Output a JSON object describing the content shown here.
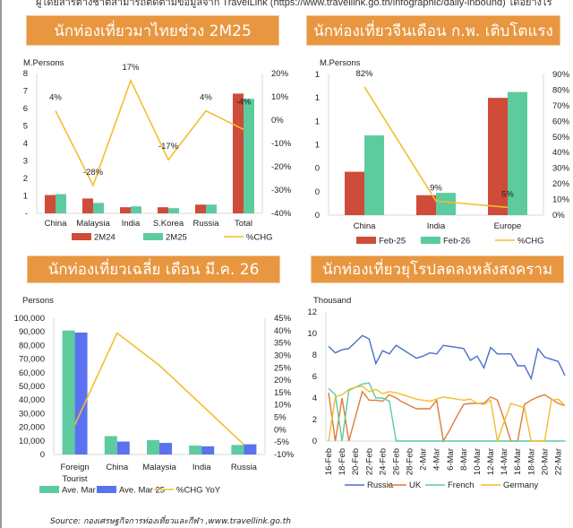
{
  "header_note": "ผู้โดยสารต่างชาติสามารถติดตามข้อมูลจาก TravelLink (https://www.travellink.go.th/infographic/daily-inbound) ได้อย่างไร",
  "titles": [
    "นักท่องเที่ยวมาไทยช่วง 2M25",
    "นักท่องเที่ยวจีนเดือน ก.พ. เติบโตแรง",
    "นักท่องเที่ยวเฉลี่ย เดือน มี.ค. 26",
    "นักท่องเที่ยวยุโรปลดลงหลังสงคราม"
  ],
  "source": "Source: กองเศรษฐกิจการท่องเที่ยวและกีฬา ,www.travellink.go.th",
  "colors": {
    "title_bar": "#E8963F",
    "red": "#CF4B3A",
    "green": "#5DCB9E",
    "blue": "#5B72F0",
    "yellow": "#F2BE2C",
    "russia": "#4A6FC9",
    "uk": "#E07B39",
    "french": "#5DCB9E",
    "germany": "#F2BE2C"
  },
  "chart_data": [
    {
      "type": "bar+line",
      "ylabel": "M.Persons",
      "categories": [
        "China",
        "Malaysia",
        "India",
        "S.Korea",
        "Russia",
        "Total"
      ],
      "ylim": [
        0,
        8
      ],
      "yticks": [
        "-",
        "1",
        "2",
        "3",
        "4",
        "5",
        "6",
        "7",
        "8"
      ],
      "y2lim": [
        -40,
        20
      ],
      "y2ticks": [
        "-40%",
        "-30%",
        "-20%",
        "-10%",
        "0%",
        "10%",
        "20%"
      ],
      "series": [
        {
          "name": "2M24",
          "type": "bar",
          "values": [
            1.05,
            0.85,
            0.35,
            0.35,
            0.5,
            6.85
          ]
        },
        {
          "name": "2M25",
          "type": "bar",
          "values": [
            1.1,
            0.6,
            0.4,
            0.3,
            0.5,
            6.55
          ]
        },
        {
          "name": "%CHG",
          "type": "line",
          "axis": "right",
          "values": [
            4,
            -28,
            17,
            -17,
            4,
            -4
          ],
          "labels": [
            "4%",
            "-28%",
            "17%",
            "-17%",
            "4%",
            "-4%"
          ]
        }
      ],
      "legend": "bottom"
    },
    {
      "type": "bar+line",
      "ylabel": "M.Persons",
      "categories": [
        "China",
        "India",
        "Europe"
      ],
      "ylim": [
        0,
        1.2
      ],
      "yticks": [
        "0",
        "0",
        "0",
        "1",
        "1",
        "1",
        "1"
      ],
      "y2lim": [
        0,
        90
      ],
      "y2ticks": [
        "0%",
        "10%",
        "20%",
        "30%",
        "40%",
        "50%",
        "60%",
        "70%",
        "80%",
        "90%"
      ],
      "series": [
        {
          "name": "Feb-25",
          "type": "bar",
          "values": [
            0.37,
            0.17,
            1.0
          ]
        },
        {
          "name": "Feb-26",
          "type": "bar",
          "values": [
            0.68,
            0.19,
            1.05
          ]
        },
        {
          "name": "%CHG",
          "type": "line",
          "axis": "right",
          "values": [
            82,
            9,
            5
          ],
          "labels": [
            "82%",
            "9%",
            "5%"
          ]
        }
      ],
      "legend": "bottom"
    },
    {
      "type": "bar+line",
      "ylabel": "Persons",
      "categories": [
        "Foreign Tourist",
        "China",
        "Malaysia",
        "India",
        "Russia"
      ],
      "ylim": [
        0,
        100000
      ],
      "yticks": [
        "0",
        "10,000",
        "20,000",
        "30,000",
        "40,000",
        "50,000",
        "60,000",
        "70,000",
        "80,000",
        "90,000",
        "100,000"
      ],
      "y2lim": [
        -10,
        45
      ],
      "y2ticks": [
        "-10%",
        "-5%",
        "0%",
        "5%",
        "10%",
        "15%",
        "20%",
        "25%",
        "30%",
        "35%",
        "40%",
        "45%"
      ],
      "series": [
        {
          "name": "Ave. Mar 26",
          "type": "bar",
          "values": [
            91000,
            13500,
            10500,
            6500,
            7000
          ]
        },
        {
          "name": "Ave. Mar 25",
          "type": "bar",
          "values": [
            89500,
            9500,
            8500,
            6000,
            7500
          ]
        },
        {
          "name": "%CHG YoY",
          "type": "line",
          "axis": "right",
          "values": [
            2,
            39,
            26,
            10,
            -6
          ]
        }
      ],
      "legend": "bottom"
    },
    {
      "type": "line",
      "ylabel": "Thousand",
      "ylim": [
        0,
        12
      ],
      "yticks": [
        "0",
        "2",
        "4",
        "6",
        "8",
        "10",
        "12"
      ],
      "xticks": [
        "16-Feb",
        "18-Feb",
        "20-Feb",
        "22-Feb",
        "24-Feb",
        "26-Feb",
        "28-Feb",
        "2-Mar",
        "4-Mar",
        "6-Mar",
        "8-Mar",
        "10-Mar",
        "12-Mar",
        "14-Mar",
        "16-Mar",
        "18-Mar",
        "20-Mar",
        "22-Mar"
      ],
      "x_range": [
        "16-Feb",
        "23-Mar"
      ],
      "series": [
        {
          "name": "Russia",
          "values": [
            8.8,
            8.2,
            8.5,
            8.6,
            9.2,
            9.8,
            9.5,
            7.2,
            8.4,
            8.1,
            8.9,
            8.5,
            8.1,
            7.7,
            7.9,
            8.2,
            8.1,
            8.9,
            8.8,
            8.7,
            8.6,
            7.5,
            7.9,
            6.8,
            8.7,
            8.1,
            8.1,
            8.1,
            7.0,
            7.0,
            5.8,
            8.6,
            7.8,
            7.6,
            7.4,
            6.1
          ]
        },
        {
          "name": "UK",
          "values": [
            4.5,
            0,
            4.0,
            0,
            2.3,
            4.6,
            3.8,
            3.8,
            3.7,
            4.3,
            4.0,
            3.6,
            3.3,
            3.0,
            3.0,
            3.0,
            3.8,
            0,
            1.1,
            2.3,
            3.4,
            3.5,
            3.5,
            3.5,
            4.1,
            3.8,
            2.0,
            0,
            0,
            3.4,
            3.8,
            4.1,
            4.3,
            3.9,
            3.5,
            3.3
          ]
        },
        {
          "name": "French",
          "values": [
            4.9,
            4.3,
            0,
            4.7,
            5.0,
            5.3,
            5.4,
            4.0,
            4.0,
            3.7,
            0,
            0,
            0,
            0,
            0,
            0,
            0,
            0,
            0,
            0,
            0,
            0,
            0,
            0,
            0,
            0,
            0,
            0,
            0,
            0,
            0,
            0,
            0,
            0,
            0,
            0
          ]
        },
        {
          "name": "Germany",
          "values": [
            0,
            4.1,
            4.3,
            4.8,
            5.0,
            5.1,
            4.6,
            4.8,
            4.4,
            4.6,
            4.5,
            4.3,
            4.1,
            3.9,
            3.8,
            3.7,
            3.9,
            4.1,
            4.0,
            3.9,
            3.8,
            3.9,
            3.5,
            3.4,
            3.8,
            0,
            1.8,
            3.5,
            3.3,
            3.1,
            0,
            0,
            0,
            3.8,
            3.9,
            3.3
          ]
        }
      ],
      "legend": "bottom"
    }
  ]
}
